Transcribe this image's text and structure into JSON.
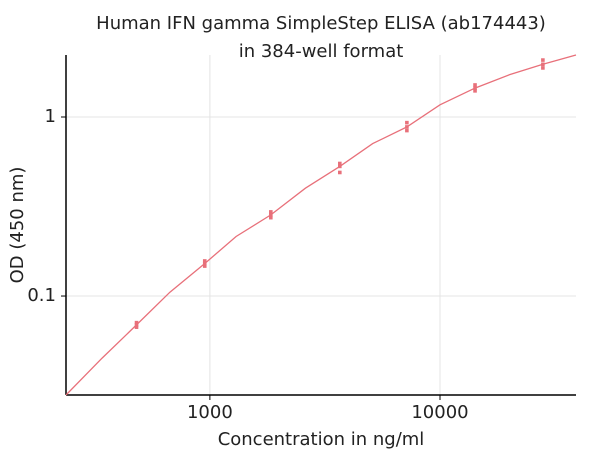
{
  "chart_data": {
    "type": "scatter",
    "title_lines": [
      "Human IFN gamma  SimpleStep ELISA (ab174443)",
      "in 384-well format"
    ],
    "xlabel": "Concentration in ng/ml",
    "ylabel": "OD (450 nm)",
    "log_x": true,
    "log_y": true,
    "grid": true,
    "color": "#e8707a",
    "xlim": [
      237,
      39000
    ],
    "ylim": [
      0.028,
      2.22
    ],
    "xticks": [
      1000,
      10000
    ],
    "yticks": [
      0.1,
      1
    ],
    "x": [
      480,
      950,
      1840,
      3670,
      7180,
      14200,
      28000
    ],
    "replicates": [
      [
        0.067,
        0.069,
        0.071
      ],
      [
        0.147,
        0.152,
        0.157
      ],
      [
        0.274,
        0.284,
        0.295
      ],
      [
        0.49,
        0.53,
        0.55
      ],
      [
        0.84,
        0.88,
        0.93
      ],
      [
        1.4,
        1.45,
        1.51
      ],
      [
        1.88,
        1.97,
        2.08
      ]
    ],
    "fit": {
      "x": [
        237,
        340,
        480,
        670,
        950,
        1300,
        1840,
        2600,
        3670,
        5100,
        7180,
        10000,
        14200,
        20000,
        28000,
        39000
      ],
      "values": [
        0.028,
        0.045,
        0.069,
        0.105,
        0.152,
        0.215,
        0.284,
        0.4,
        0.53,
        0.71,
        0.88,
        1.17,
        1.45,
        1.72,
        1.97,
        2.22
      ]
    }
  }
}
